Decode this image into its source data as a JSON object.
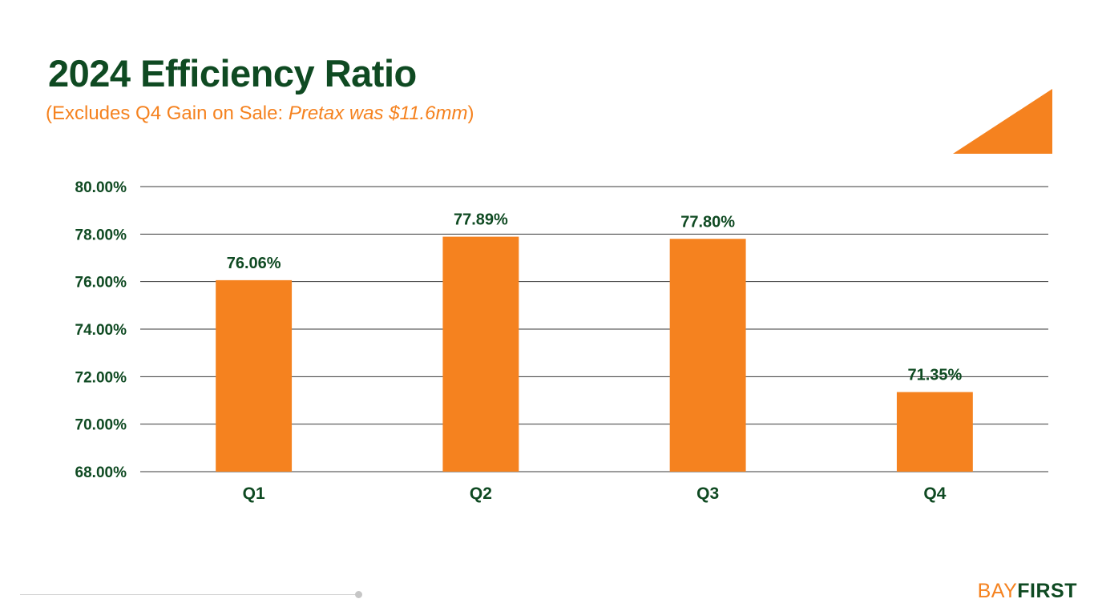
{
  "header": {
    "title": "2024 Efficiency Ratio",
    "subtitle_prefix": "(Excludes Q4 Gain on Sale: ",
    "subtitle_italic": "Pretax was $11.6mm",
    "subtitle_suffix": ")"
  },
  "colors": {
    "bar": "#f5821f",
    "text": "#0f4a22",
    "grid": "#3a3a3a"
  },
  "chart_data": {
    "type": "bar",
    "title": "2024 Efficiency Ratio",
    "categories": [
      "Q1",
      "Q2",
      "Q3",
      "Q4"
    ],
    "values": [
      76.06,
      77.89,
      77.8,
      71.35
    ],
    "data_labels": [
      "76.06%",
      "77.89%",
      "77.80%",
      "71.35%"
    ],
    "ylim": [
      68,
      80
    ],
    "yticks": [
      68,
      70,
      72,
      74,
      76,
      78,
      80
    ],
    "ytick_labels": [
      "68.00%",
      "70.00%",
      "72.00%",
      "74.00%",
      "76.00%",
      "78.00%",
      "80.00%"
    ],
    "xlabel": "",
    "ylabel": "",
    "grid": true
  },
  "logo": {
    "part1": "BAY",
    "part2": "FIRST"
  }
}
